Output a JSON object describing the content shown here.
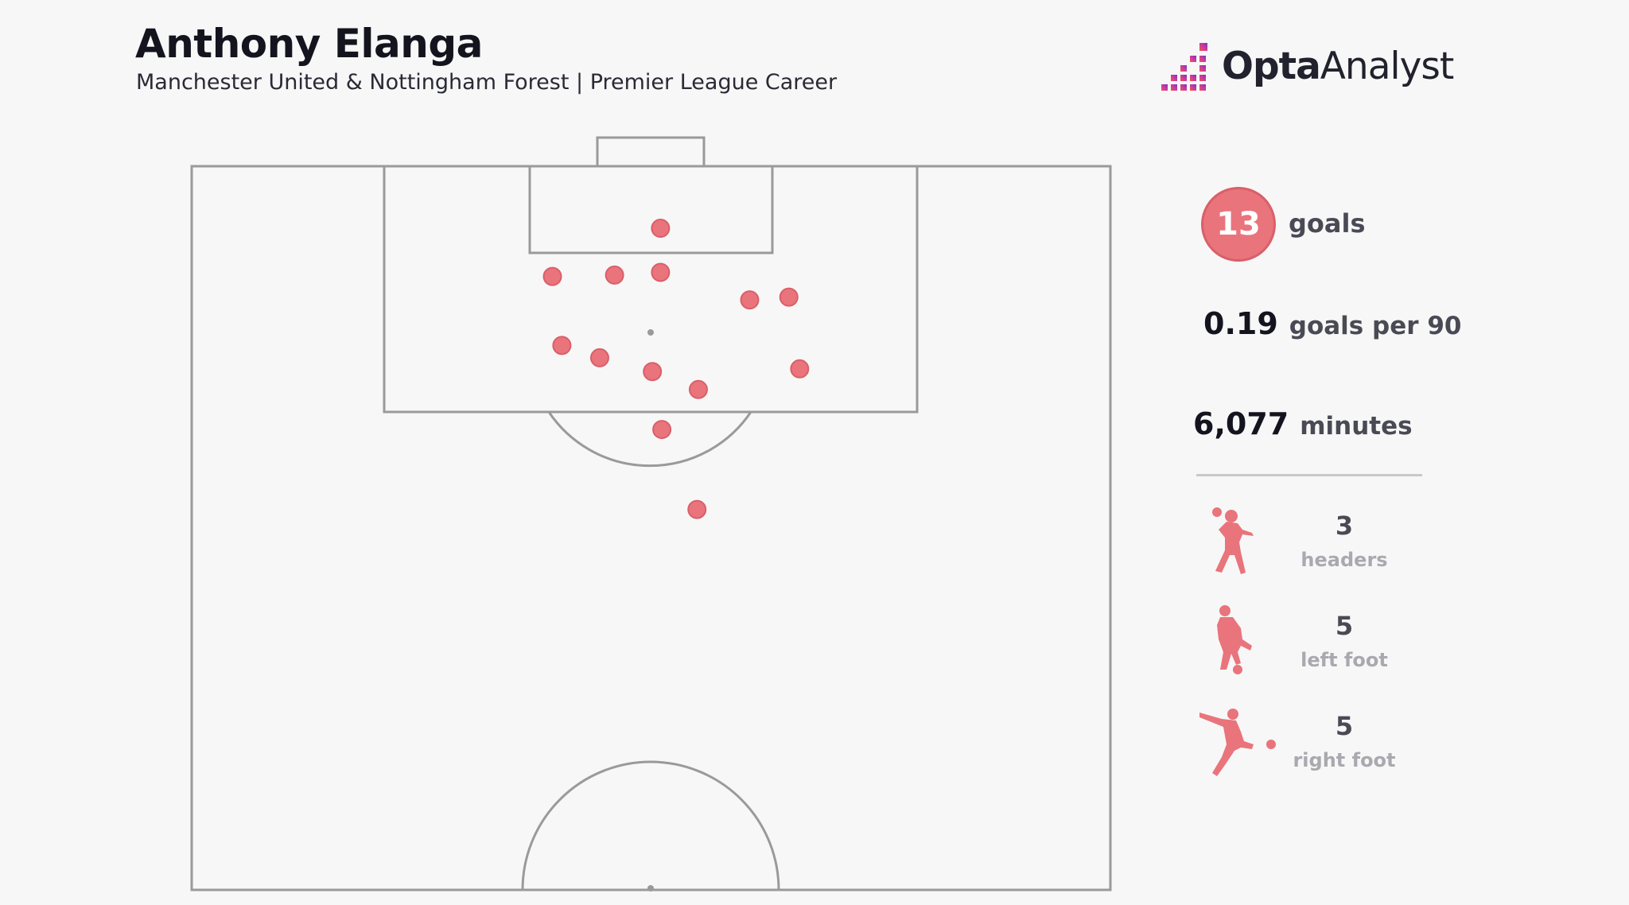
{
  "header": {
    "title": "Anthony Elanga",
    "subtitle": "Manchester United & Nottingham Forest | Premier League Career",
    "logo_bold": "Opta",
    "logo_light": "Analyst"
  },
  "colors": {
    "goal_marker": "#e9747c",
    "goal_marker_border": "#d95f69",
    "pitch_lines": "#9a9a9a",
    "background": "#f7f7f7",
    "logo_gradient": [
      "#f2564f",
      "#c53aa3",
      "#7b2fc9"
    ]
  },
  "stats": {
    "goals_value": "13",
    "goals_label": "goals",
    "per90_value": "0.19",
    "per90_label": "goals per 90",
    "minutes_value": "6,077",
    "minutes_label": "minutes"
  },
  "goal_types": [
    {
      "icon": "header-player-icon",
      "value": "3",
      "label": "headers"
    },
    {
      "icon": "left-foot-player-icon",
      "value": "5",
      "label": "left foot"
    },
    {
      "icon": "right-foot-player-icon",
      "value": "5",
      "label": "right foot"
    }
  ],
  "chart_data": {
    "type": "scatter",
    "description_units": "pitch metres: x across pitch width (0-68, left touchline = 0), y distance from goal line (0-52.5, half pitch)",
    "xlim": [
      0,
      68
    ],
    "ylim": [
      0,
      52.5
    ],
    "series": [
      {
        "points": [
          {
            "x": 34.7,
            "y": 4.5
          },
          {
            "x": 26.7,
            "y": 8.0
          },
          {
            "x": 31.3,
            "y": 7.9
          },
          {
            "x": 34.7,
            "y": 7.7
          },
          {
            "x": 41.3,
            "y": 9.7
          },
          {
            "x": 44.2,
            "y": 9.5
          },
          {
            "x": 27.4,
            "y": 13.0
          },
          {
            "x": 30.2,
            "y": 13.9
          },
          {
            "x": 34.1,
            "y": 14.9
          },
          {
            "x": 37.5,
            "y": 16.2
          },
          {
            "x": 45.0,
            "y": 14.7
          },
          {
            "x": 34.8,
            "y": 19.1
          },
          {
            "x": 37.4,
            "y": 24.9
          }
        ]
      }
    ]
  }
}
